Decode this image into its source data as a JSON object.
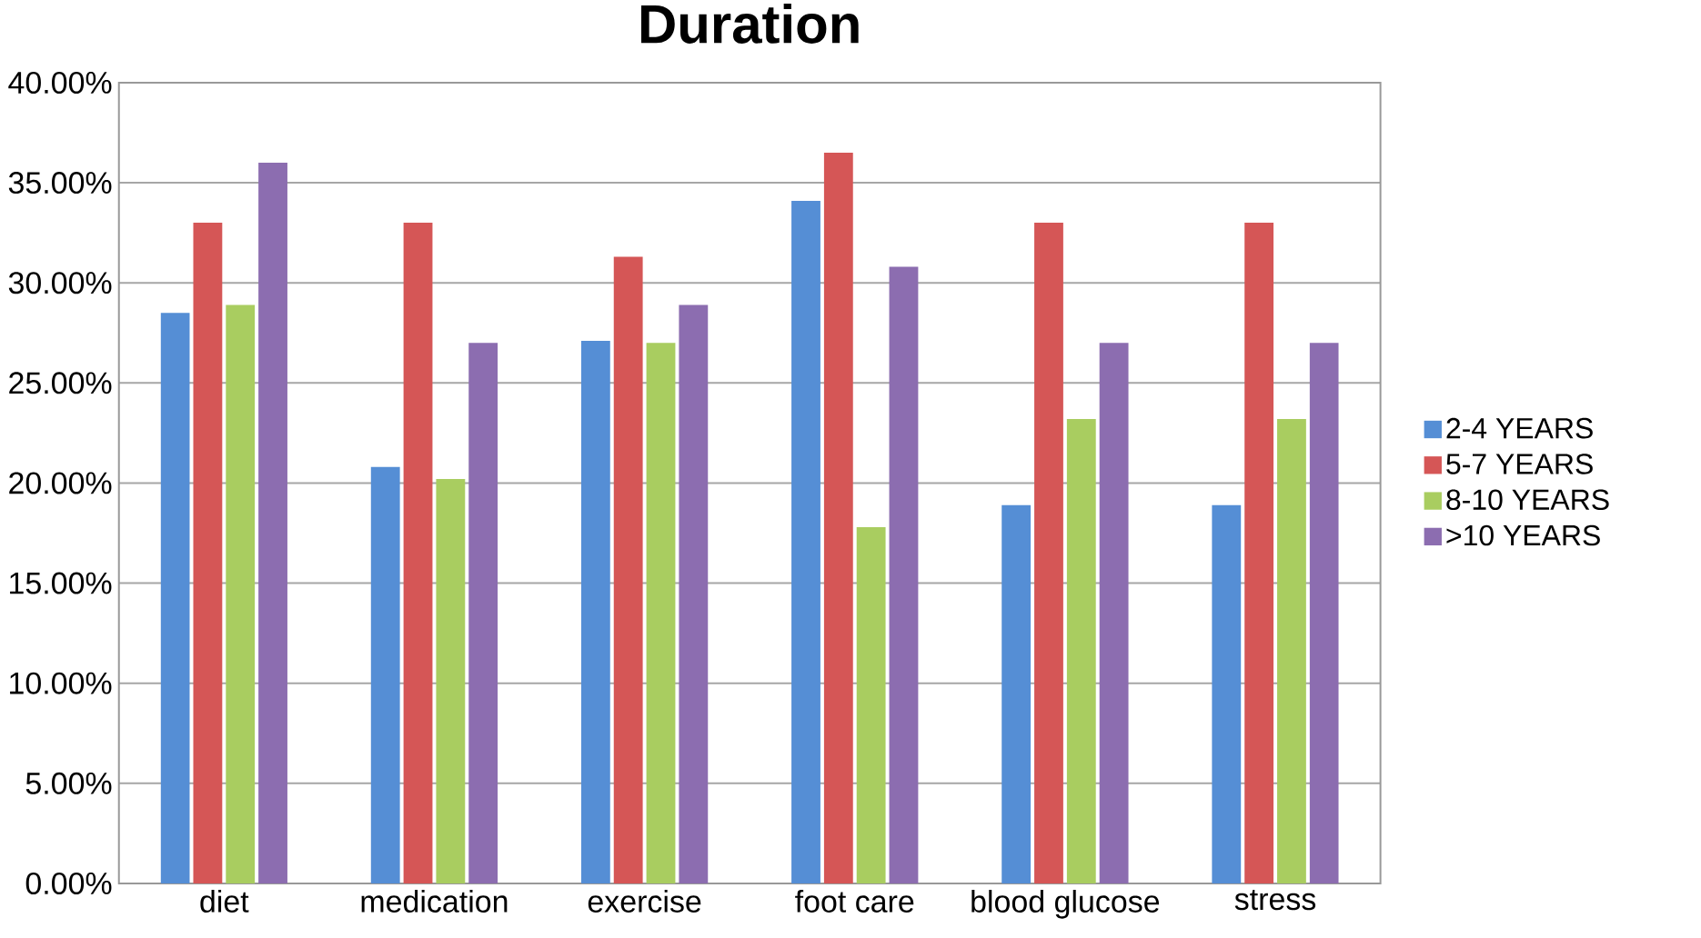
{
  "chart_data": {
    "type": "bar",
    "title": "Duration",
    "categories": [
      "diet",
      "medication",
      "exercise",
      "foot care",
      "blood glucose",
      "stress"
    ],
    "series": [
      {
        "name": "2-4 YEARS",
        "color": "#558ed5",
        "values": [
          28.5,
          20.8,
          27.1,
          34.1,
          18.9,
          18.9
        ]
      },
      {
        "name": "5-7 YEARS",
        "color": "#d55656",
        "values": [
          33.0,
          33.0,
          31.3,
          36.5,
          33.0,
          33.0
        ]
      },
      {
        "name": "8-10 YEARS",
        "color": "#a9cd60",
        "values": [
          28.9,
          20.2,
          27.0,
          17.8,
          23.2,
          23.2
        ]
      },
      {
        "name": ">10 YEARS",
        "color": "#8c6db0",
        "values": [
          36.0,
          27.0,
          28.9,
          30.8,
          27.0,
          27.0
        ]
      }
    ],
    "ylim": [
      0,
      40
    ],
    "yticks": [
      {
        "value": 0,
        "label": "0.00%"
      },
      {
        "value": 5,
        "label": "5.00%"
      },
      {
        "value": 10,
        "label": "10.00%"
      },
      {
        "value": 15,
        "label": "15.00%"
      },
      {
        "value": 20,
        "label": "20.00%"
      },
      {
        "value": 25,
        "label": "25.00%"
      },
      {
        "value": 30,
        "label": "30.00%"
      },
      {
        "value": 35,
        "label": "35.00%"
      },
      {
        "value": 40,
        "label": "40.00%"
      }
    ],
    "grid": "y",
    "legend": "right"
  }
}
